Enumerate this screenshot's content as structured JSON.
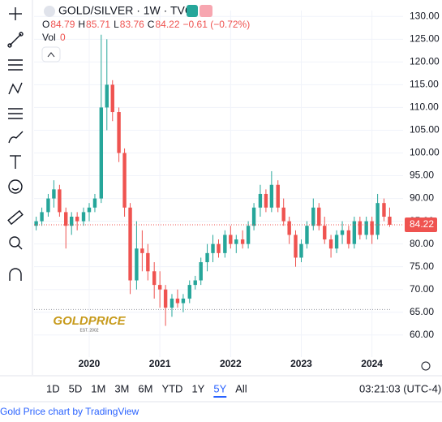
{
  "chart_data": {
    "type": "candlestick",
    "header": {
      "symbol": "GOLD/SILVER · 1W · TVC",
      "o_label": "O",
      "open_value": 84.79,
      "h_label": "H",
      "high_value": 85.71,
      "l_label": "L",
      "low_value": 83.76,
      "c_label": "C",
      "close_value": 84.22,
      "change": "−0.61 (−0.72%)",
      "vol_label": "Vol",
      "vol_value": 0
    },
    "x": [
      2019.25,
      2019.33,
      2019.42,
      2019.5,
      2019.58,
      2019.67,
      2019.75,
      2019.83,
      2019.92,
      2020.0,
      2020.08,
      2020.17,
      2020.25,
      2020.33,
      2020.42,
      2020.5,
      2020.58,
      2020.67,
      2020.75,
      2020.83,
      2020.92,
      2021.0,
      2021.08,
      2021.17,
      2021.25,
      2021.33,
      2021.42,
      2021.5,
      2021.58,
      2021.67,
      2021.75,
      2021.83,
      2021.92,
      2022.0,
      2022.08,
      2022.17,
      2022.25,
      2022.33,
      2022.42,
      2022.5,
      2022.58,
      2022.67,
      2022.75,
      2022.83,
      2022.92,
      2023.0,
      2023.08,
      2023.17,
      2023.25,
      2023.33,
      2023.42,
      2023.5,
      2023.58,
      2023.67,
      2023.75,
      2023.83,
      2023.92,
      2024.0,
      2024.08,
      2024.17,
      2024.25
    ],
    "open": [
      84,
      85,
      87,
      90,
      92,
      87,
      84,
      86,
      85,
      87,
      88,
      90,
      110,
      115,
      109,
      100,
      88,
      72,
      79,
      78,
      74,
      71,
      70,
      66,
      68,
      67,
      68,
      71,
      72,
      76,
      78,
      80,
      78,
      82,
      80,
      81,
      80,
      84,
      88,
      91,
      88,
      93,
      88,
      85,
      82,
      77,
      80,
      84,
      88,
      84,
      81,
      79,
      82,
      83,
      80,
      85,
      82,
      85,
      82,
      89,
      86
    ],
    "high": [
      86,
      88,
      91,
      94,
      93,
      88,
      87,
      87,
      88,
      89,
      91,
      126,
      125,
      116,
      110,
      101,
      89,
      85,
      83,
      80,
      76,
      74,
      71,
      69,
      70,
      69,
      72,
      73,
      77,
      80,
      82,
      81,
      83,
      84,
      82,
      83,
      85,
      89,
      93,
      92,
      96,
      94,
      90,
      86,
      83,
      81,
      85,
      90,
      89,
      86,
      82,
      83,
      85,
      84,
      86,
      86,
      86,
      86,
      91,
      90,
      88
    ],
    "low": [
      83,
      84,
      86,
      88,
      86,
      79,
      82,
      83,
      84,
      85,
      87,
      89,
      105,
      107,
      98,
      86,
      69,
      70,
      74,
      72,
      68,
      66,
      62,
      64,
      66,
      65,
      67,
      70,
      71,
      74,
      76,
      77,
      77,
      79,
      78,
      79,
      79,
      83,
      86,
      87,
      87,
      87,
      84,
      80,
      75,
      76,
      79,
      83,
      83,
      80,
      77,
      78,
      80,
      79,
      79,
      81,
      81,
      80,
      81,
      85,
      83.76
    ],
    "close": [
      85,
      87,
      90,
      92,
      87,
      84,
      86,
      85,
      87,
      88,
      90,
      110,
      115,
      109,
      100,
      88,
      72,
      79,
      78,
      74,
      71,
      70,
      66,
      68,
      67,
      68,
      71,
      72,
      76,
      78,
      80,
      78,
      82,
      80,
      81,
      80,
      84,
      88,
      91,
      88,
      93,
      88,
      85,
      82,
      77,
      80,
      84,
      88,
      84,
      81,
      79,
      82,
      83,
      80,
      85,
      82,
      85,
      82,
      89,
      86,
      84.22
    ],
    "up_color": "#26a69a",
    "down_color": "#ef5350",
    "xlim": [
      2019.22,
      2024.44
    ],
    "xticks": [
      2020,
      2021,
      2022,
      2023,
      2024
    ],
    "ylim": [
      58,
      131.3
    ],
    "yticks": [
      {
        "value": 60,
        "label": "60.00"
      },
      {
        "value": 65,
        "label": "65.00"
      },
      {
        "value": 70,
        "label": "70.00"
      },
      {
        "value": 75,
        "label": "75.00"
      },
      {
        "value": 80,
        "label": "80.00"
      },
      {
        "value": 85,
        "label": "85.00"
      },
      {
        "value": 90,
        "label": "90.00"
      },
      {
        "value": 95,
        "label": "95.00"
      },
      {
        "value": 100,
        "label": "100.00"
      },
      {
        "value": 105,
        "label": "105.00"
      },
      {
        "value": 110,
        "label": "110.00"
      },
      {
        "value": 115,
        "label": "115.00"
      },
      {
        "value": 120,
        "label": "120.00"
      },
      {
        "value": 125,
        "label": "125.00"
      },
      {
        "value": 130,
        "label": "130.00"
      }
    ],
    "reference_line": 65.6,
    "logo": {
      "name": "GOLDPRICE",
      "est": "EST. 2002"
    },
    "ranges": [
      "1D",
      "5D",
      "1M",
      "3M",
      "6M",
      "YTD",
      "1Y",
      "5Y",
      "All"
    ],
    "active_range": 7,
    "clock": "03:21:03 (UTC-4)",
    "footer": "Gold Price chart by TradingView"
  }
}
